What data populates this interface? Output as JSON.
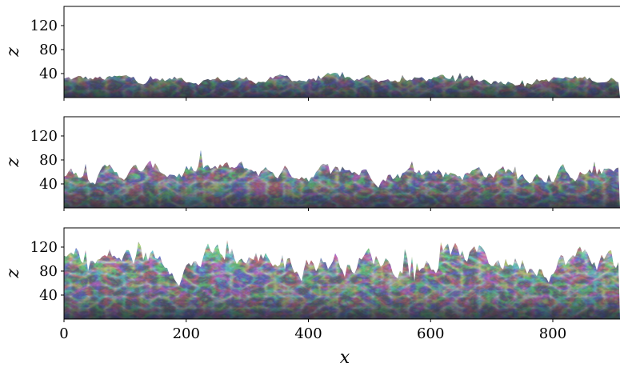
{
  "chart_data": [
    {
      "type": "field",
      "y_label": "z",
      "xlim": [
        0,
        910
      ],
      "ylim": [
        0,
        152
      ],
      "xticks": [
        0,
        200,
        400,
        600,
        800
      ],
      "yticks": [
        40,
        80,
        120
      ]
    },
    {
      "type": "field",
      "y_label": "z",
      "xlim": [
        0,
        910
      ],
      "ylim": [
        0,
        152
      ],
      "xticks": [
        0,
        200,
        400,
        600,
        800
      ],
      "yticks": [
        40,
        80,
        120
      ]
    },
    {
      "type": "field",
      "y_label": "z",
      "x_label": "x",
      "xlim": [
        0,
        910
      ],
      "ylim": [
        0,
        152
      ],
      "xticks": [
        0,
        200,
        400,
        600,
        800
      ],
      "yticks": [
        40,
        80,
        120
      ]
    }
  ]
}
